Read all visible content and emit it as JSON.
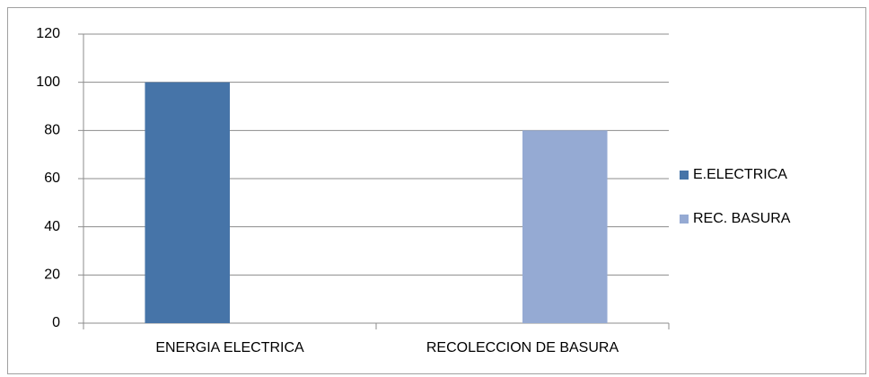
{
  "chart_data": {
    "type": "bar",
    "categories": [
      "ENERGIA ELECTRICA",
      "RECOLECCION DE BASURA"
    ],
    "series": [
      {
        "name": "E.ELECTRICA",
        "color": "#4674a8",
        "values": [
          100,
          null
        ]
      },
      {
        "name": "REC. BASURA",
        "color": "#95aad3",
        "values": [
          null,
          80
        ]
      }
    ],
    "ylim": [
      0,
      120
    ],
    "yticks": [
      0,
      20,
      40,
      60,
      80,
      100,
      120
    ],
    "grid": true,
    "legend": "right"
  }
}
